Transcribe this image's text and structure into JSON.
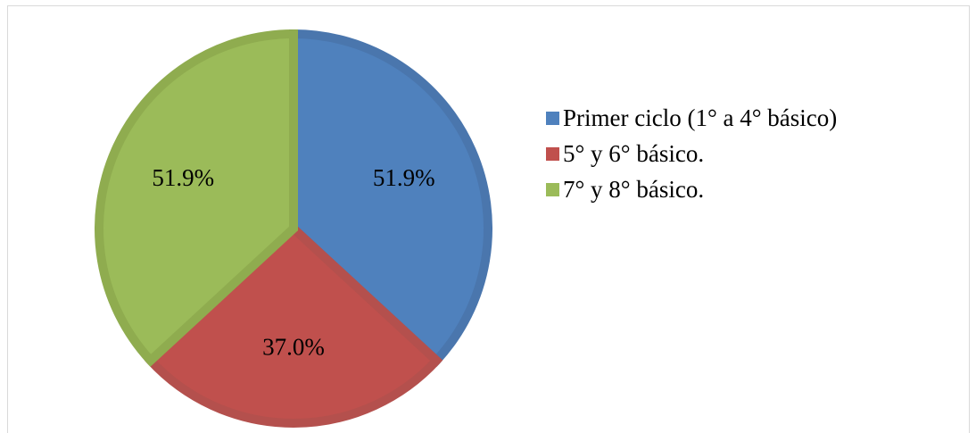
{
  "chart_data": {
    "type": "pie",
    "title": "",
    "labels": [
      "Primer ciclo (1° a 4° básico)",
      "5° y 6° básico.",
      "7° y 8° básico."
    ],
    "values": [
      51.9,
      37.0,
      51.9
    ],
    "data_labels": [
      "51.9%",
      "37.0%",
      "51.9%"
    ],
    "colors": [
      "#4F81BD",
      "#C0504D",
      "#9BBB59"
    ],
    "border_colors": [
      "#4A76AD",
      "#B4504D",
      "#8FAC4F"
    ],
    "start_angle_deg": 0,
    "direction": "clockwise",
    "legend_position": "right"
  }
}
